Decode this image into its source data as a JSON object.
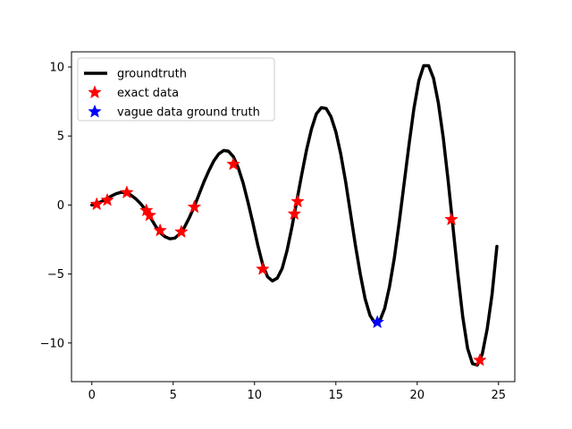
{
  "chart_data": {
    "type": "line",
    "title": "",
    "xlabel": "",
    "ylabel": "",
    "xlim": [
      -1.25,
      26.0
    ],
    "ylim": [
      -12.8,
      11.1
    ],
    "xticks": [
      0,
      5,
      10,
      15,
      20,
      25
    ],
    "yticks": [
      -10,
      -5,
      0,
      5,
      10
    ],
    "xtick_labels": [
      "0",
      "5",
      "10",
      "15",
      "20",
      "25"
    ],
    "ytick_labels": [
      "−10",
      "−5",
      "0",
      "5",
      "10"
    ],
    "grid": false,
    "legend_position": "top-left",
    "series": [
      {
        "name": "groundtruth",
        "kind": "line",
        "color": "#000000",
        "points": [
          [
            0.0,
            0.0
          ],
          [
            0.3,
            0.1
          ],
          [
            0.6,
            0.25
          ],
          [
            0.9,
            0.45
          ],
          [
            1.2,
            0.65
          ],
          [
            1.5,
            0.82
          ],
          [
            1.8,
            0.92
          ],
          [
            2.1,
            0.88
          ],
          [
            2.4,
            0.72
          ],
          [
            2.7,
            0.45
          ],
          [
            3.0,
            0.1
          ],
          [
            3.3,
            -0.35
          ],
          [
            3.6,
            -0.9
          ],
          [
            3.9,
            -1.5
          ],
          [
            4.2,
            -2.0
          ],
          [
            4.5,
            -2.3
          ],
          [
            4.8,
            -2.45
          ],
          [
            5.1,
            -2.4
          ],
          [
            5.4,
            -2.1
          ],
          [
            5.7,
            -1.6
          ],
          [
            6.0,
            -0.9
          ],
          [
            6.3,
            -0.1
          ],
          [
            6.6,
            0.8
          ],
          [
            6.9,
            1.7
          ],
          [
            7.2,
            2.5
          ],
          [
            7.5,
            3.2
          ],
          [
            7.8,
            3.7
          ],
          [
            8.1,
            3.95
          ],
          [
            8.4,
            3.9
          ],
          [
            8.7,
            3.5
          ],
          [
            9.0,
            2.7
          ],
          [
            9.3,
            1.6
          ],
          [
            9.6,
            0.2
          ],
          [
            9.9,
            -1.3
          ],
          [
            10.2,
            -2.9
          ],
          [
            10.5,
            -4.3
          ],
          [
            10.8,
            -5.2
          ],
          [
            11.1,
            -5.5
          ],
          [
            11.4,
            -5.3
          ],
          [
            11.7,
            -4.6
          ],
          [
            12.0,
            -3.3
          ],
          [
            12.3,
            -1.6
          ],
          [
            12.6,
            0.3
          ],
          [
            12.9,
            2.2
          ],
          [
            13.2,
            4.0
          ],
          [
            13.5,
            5.5
          ],
          [
            13.8,
            6.6
          ],
          [
            14.1,
            7.05
          ],
          [
            14.4,
            7.0
          ],
          [
            14.7,
            6.4
          ],
          [
            15.0,
            5.3
          ],
          [
            15.3,
            3.7
          ],
          [
            15.6,
            1.7
          ],
          [
            15.9,
            -0.6
          ],
          [
            16.2,
            -2.9
          ],
          [
            16.5,
            -5.0
          ],
          [
            16.8,
            -6.8
          ],
          [
            17.1,
            -8.0
          ],
          [
            17.4,
            -8.55
          ],
          [
            17.7,
            -8.4
          ],
          [
            18.0,
            -7.5
          ],
          [
            18.3,
            -5.9
          ],
          [
            18.6,
            -3.8
          ],
          [
            18.9,
            -1.2
          ],
          [
            19.2,
            1.6
          ],
          [
            19.5,
            4.4
          ],
          [
            19.8,
            7.0
          ],
          [
            20.1,
            9.0
          ],
          [
            20.4,
            10.1
          ],
          [
            20.7,
            10.1
          ],
          [
            21.0,
            9.2
          ],
          [
            21.3,
            7.4
          ],
          [
            21.6,
            4.9
          ],
          [
            21.9,
            1.8
          ],
          [
            22.2,
            -1.6
          ],
          [
            22.5,
            -5.0
          ],
          [
            22.8,
            -8.1
          ],
          [
            23.1,
            -10.4
          ],
          [
            23.4,
            -11.5
          ],
          [
            23.7,
            -11.6
          ],
          [
            24.0,
            -10.8
          ],
          [
            24.3,
            -9.0
          ],
          [
            24.6,
            -6.5
          ],
          [
            24.9,
            -3.0
          ]
        ]
      },
      {
        "name": "exact data",
        "kind": "marker",
        "color": "#ff0000",
        "points": [
          [
            0.3,
            0.05
          ],
          [
            0.95,
            0.35
          ],
          [
            2.15,
            0.9
          ],
          [
            3.35,
            -0.4
          ],
          [
            3.55,
            -0.75
          ],
          [
            4.2,
            -1.85
          ],
          [
            5.5,
            -1.95
          ],
          [
            6.3,
            -0.15
          ],
          [
            8.7,
            2.95
          ],
          [
            10.5,
            -4.65
          ],
          [
            12.45,
            -0.65
          ],
          [
            12.65,
            0.25
          ],
          [
            22.1,
            -1.05
          ],
          [
            23.85,
            -11.25
          ]
        ]
      },
      {
        "name": "vague data ground truth",
        "kind": "marker",
        "color": "#0000ff",
        "points": [
          [
            17.55,
            -8.5
          ]
        ]
      }
    ]
  }
}
